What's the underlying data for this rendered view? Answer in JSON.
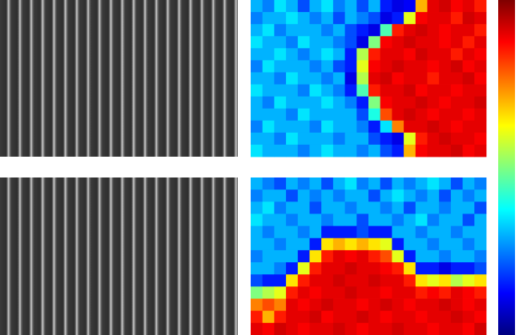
{
  "heatmaps": [
    {
      "values": [
        [
          0.3,
          0.25,
          0.35,
          0.3,
          0.2,
          0.3,
          0.35,
          0.25,
          0.3,
          0.2,
          0.3,
          0.15,
          0.1,
          0.12,
          0.7,
          0.9,
          0.92,
          0.88,
          0.9,
          0.85
        ],
        [
          0.25,
          0.3,
          0.3,
          0.35,
          0.3,
          0.25,
          0.3,
          0.2,
          0.3,
          0.25,
          0.2,
          0.1,
          0.15,
          0.6,
          0.88,
          0.9,
          0.9,
          0.85,
          0.92,
          0.9
        ],
        [
          0.3,
          0.35,
          0.25,
          0.3,
          0.3,
          0.3,
          0.25,
          0.3,
          0.2,
          0.15,
          0.1,
          0.45,
          0.85,
          0.9,
          0.92,
          0.9,
          0.88,
          0.9,
          0.9,
          0.85
        ],
        [
          0.35,
          0.3,
          0.3,
          0.25,
          0.35,
          0.3,
          0.3,
          0.25,
          0.2,
          0.1,
          0.5,
          0.88,
          0.9,
          0.92,
          0.9,
          0.9,
          0.88,
          0.9,
          0.85,
          0.9
        ],
        [
          0.3,
          0.3,
          0.35,
          0.3,
          0.25,
          0.3,
          0.35,
          0.3,
          0.15,
          0.55,
          0.85,
          0.9,
          0.9,
          0.88,
          0.92,
          0.9,
          0.9,
          0.85,
          0.9,
          0.88
        ],
        [
          0.25,
          0.35,
          0.3,
          0.3,
          0.3,
          0.25,
          0.3,
          0.2,
          0.15,
          0.6,
          0.88,
          0.9,
          0.92,
          0.9,
          0.9,
          0.88,
          0.9,
          0.92,
          0.88,
          0.9
        ],
        [
          0.3,
          0.3,
          0.25,
          0.35,
          0.3,
          0.3,
          0.25,
          0.3,
          0.1,
          0.55,
          0.9,
          0.92,
          0.88,
          0.9,
          0.9,
          0.85,
          0.9,
          0.9,
          0.92,
          0.88
        ],
        [
          0.35,
          0.3,
          0.3,
          0.3,
          0.25,
          0.35,
          0.3,
          0.25,
          0.15,
          0.45,
          0.85,
          0.9,
          0.9,
          0.92,
          0.88,
          0.9,
          0.9,
          0.88,
          0.9,
          0.9
        ],
        [
          0.3,
          0.25,
          0.35,
          0.3,
          0.3,
          0.3,
          0.35,
          0.3,
          0.25,
          0.15,
          0.5,
          0.88,
          0.9,
          0.9,
          0.92,
          0.9,
          0.88,
          0.9,
          0.9,
          0.92
        ],
        [
          0.3,
          0.3,
          0.3,
          0.25,
          0.35,
          0.3,
          0.3,
          0.3,
          0.3,
          0.2,
          0.4,
          0.8,
          0.9,
          0.92,
          0.9,
          0.88,
          0.9,
          0.9,
          0.88,
          0.9
        ],
        [
          0.25,
          0.35,
          0.3,
          0.3,
          0.3,
          0.25,
          0.35,
          0.3,
          0.3,
          0.25,
          0.15,
          0.35,
          0.75,
          0.9,
          0.9,
          0.92,
          0.9,
          0.88,
          0.9,
          0.9
        ],
        [
          0.3,
          0.3,
          0.25,
          0.35,
          0.3,
          0.3,
          0.3,
          0.25,
          0.3,
          0.3,
          0.2,
          0.15,
          0.1,
          0.6,
          0.85,
          0.9,
          0.92,
          0.9,
          0.9,
          0.88
        ],
        [
          0.35,
          0.3,
          0.3,
          0.3,
          0.25,
          0.3,
          0.35,
          0.3,
          0.3,
          0.25,
          0.3,
          0.2,
          0.15,
          0.7,
          0.88,
          0.9,
          0.9,
          0.92,
          0.88,
          0.9
        ]
      ]
    },
    {
      "values": [
        [
          0.3,
          0.25,
          0.2,
          0.3,
          0.25,
          0.3,
          0.2,
          0.3,
          0.35,
          0.25,
          0.3,
          0.2,
          0.3,
          0.25,
          0.3,
          0.35,
          0.3,
          0.2,
          0.3,
          0.25
        ],
        [
          0.25,
          0.3,
          0.3,
          0.2,
          0.3,
          0.25,
          0.3,
          0.25,
          0.3,
          0.3,
          0.2,
          0.3,
          0.35,
          0.3,
          0.25,
          0.3,
          0.2,
          0.3,
          0.25,
          0.3
        ],
        [
          0.3,
          0.35,
          0.25,
          0.3,
          0.3,
          0.2,
          0.3,
          0.3,
          0.25,
          0.3,
          0.3,
          0.25,
          0.3,
          0.2,
          0.3,
          0.3,
          0.25,
          0.3,
          0.3,
          0.2
        ],
        [
          0.35,
          0.3,
          0.3,
          0.25,
          0.3,
          0.3,
          0.25,
          0.3,
          0.3,
          0.2,
          0.3,
          0.3,
          0.25,
          0.3,
          0.35,
          0.25,
          0.3,
          0.3,
          0.2,
          0.3
        ],
        [
          0.3,
          0.25,
          0.3,
          0.3,
          0.25,
          0.3,
          0.15,
          0.15,
          0.15,
          0.2,
          0.15,
          0.15,
          0.3,
          0.3,
          0.25,
          0.3,
          0.3,
          0.25,
          0.3,
          0.3
        ],
        [
          0.3,
          0.3,
          0.25,
          0.3,
          0.3,
          0.15,
          0.65,
          0.7,
          0.65,
          0.7,
          0.65,
          0.6,
          0.15,
          0.3,
          0.3,
          0.25,
          0.3,
          0.3,
          0.25,
          0.3
        ],
        [
          0.25,
          0.3,
          0.3,
          0.3,
          0.15,
          0.65,
          0.85,
          0.9,
          0.88,
          0.9,
          0.85,
          0.8,
          0.6,
          0.15,
          0.3,
          0.3,
          0.25,
          0.3,
          0.3,
          0.25
        ],
        [
          0.3,
          0.3,
          0.25,
          0.15,
          0.6,
          0.85,
          0.9,
          0.9,
          0.92,
          0.9,
          0.9,
          0.88,
          0.85,
          0.65,
          0.15,
          0.15,
          0.1,
          0.15,
          0.15,
          0.2
        ],
        [
          0.2,
          0.15,
          0.15,
          0.65,
          0.85,
          0.9,
          0.9,
          0.92,
          0.9,
          0.9,
          0.92,
          0.9,
          0.9,
          0.85,
          0.65,
          0.6,
          0.65,
          0.55,
          0.6,
          0.65
        ],
        [
          0.5,
          0.55,
          0.6,
          0.85,
          0.9,
          0.88,
          0.9,
          0.9,
          0.92,
          0.9,
          0.9,
          0.88,
          0.9,
          0.9,
          0.85,
          0.88,
          0.85,
          0.9,
          0.88,
          0.85
        ],
        [
          0.75,
          0.8,
          0.75,
          0.9,
          0.88,
          0.9,
          0.92,
          0.9,
          0.9,
          0.88,
          0.9,
          0.92,
          0.9,
          0.88,
          0.9,
          0.9,
          0.92,
          0.9,
          0.88,
          0.9
        ],
        [
          0.85,
          0.7,
          0.85,
          0.9,
          0.9,
          0.92,
          0.88,
          0.9,
          0.9,
          0.92,
          0.9,
          0.88,
          0.9,
          0.9,
          0.88,
          0.9,
          0.9,
          0.92,
          0.9,
          0.88
        ],
        [
          0.9,
          0.88,
          0.92,
          0.9,
          0.88,
          0.9,
          0.9,
          0.92,
          0.9,
          0.88,
          0.9,
          0.9,
          0.92,
          0.9,
          0.9,
          0.88,
          0.9,
          0.9,
          0.88,
          0.92
        ]
      ]
    }
  ]
}
